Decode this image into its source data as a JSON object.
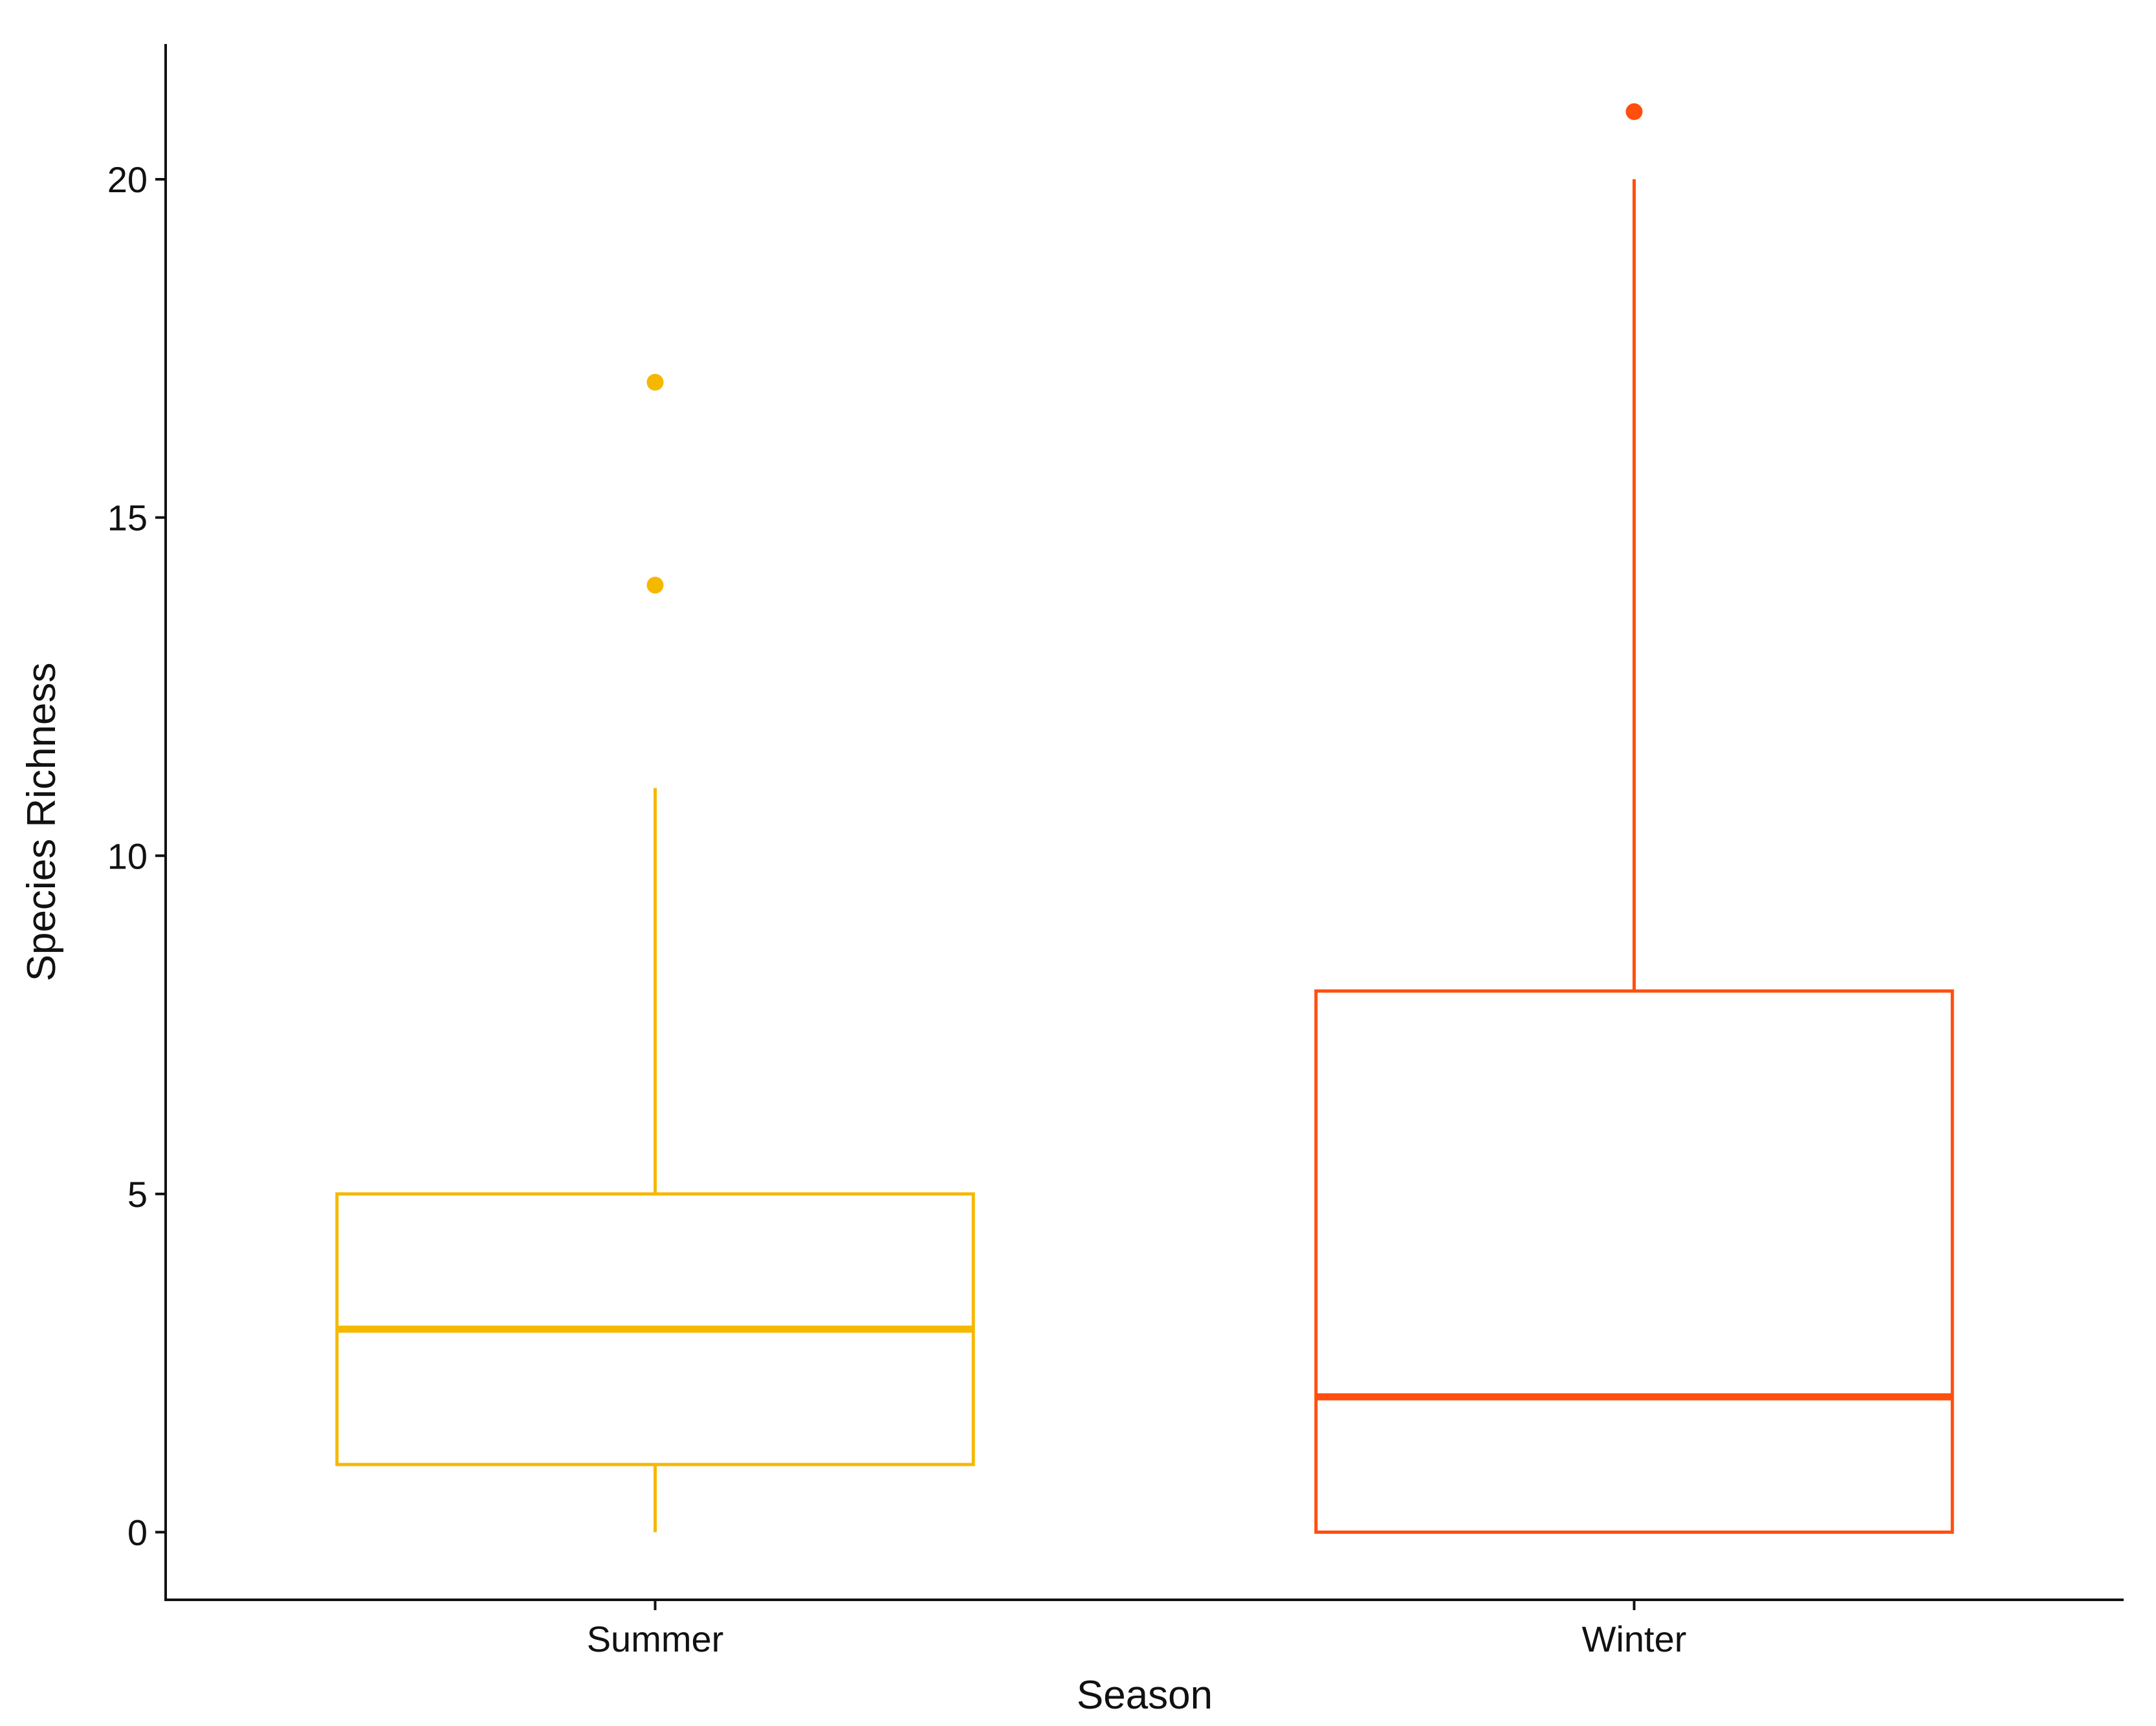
{
  "chart_data": {
    "type": "box",
    "xlabel": "Season",
    "ylabel": "Species Richness",
    "ylim": [
      -1,
      22
    ],
    "y_ticks": [
      0,
      5,
      10,
      15,
      20
    ],
    "grid": false,
    "legend": "none",
    "groups": [
      {
        "category": "Summer",
        "color": "#F5B800",
        "whisker_low": 0,
        "q1": 1,
        "median": 3,
        "q3": 5,
        "whisker_high": 11,
        "outliers": [
          14,
          17
        ]
      },
      {
        "category": "Winter",
        "color": "#FF4F0F",
        "whisker_low": 0,
        "q1": 0,
        "median": 2,
        "q3": 8,
        "whisker_high": 20,
        "outliers": [
          21
        ]
      }
    ]
  }
}
